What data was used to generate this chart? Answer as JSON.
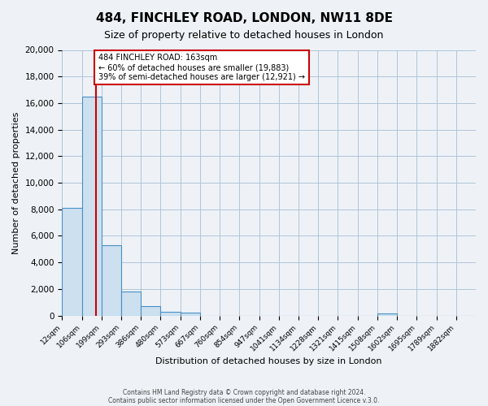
{
  "title": "484, FINCHLEY ROAD, LONDON, NW11 8DE",
  "subtitle": "Size of property relative to detached houses in London",
  "xlabel": "Distribution of detached houses by size in London",
  "ylabel": "Number of detached properties",
  "bin_labels": [
    "12sqm",
    "106sqm",
    "199sqm",
    "293sqm",
    "386sqm",
    "480sqm",
    "573sqm",
    "667sqm",
    "760sqm",
    "854sqm",
    "947sqm",
    "1041sqm",
    "1134sqm",
    "1228sqm",
    "1321sqm",
    "1415sqm",
    "1508sqm",
    "1602sqm",
    "1695sqm",
    "1789sqm",
    "1882sqm"
  ],
  "bar_heights": [
    8100,
    16500,
    5300,
    1800,
    700,
    280,
    200,
    0,
    0,
    0,
    0,
    0,
    0,
    0,
    0,
    0,
    150,
    0,
    0,
    0,
    0
  ],
  "bar_color": "#cce0f0",
  "bar_edgecolor": "#4a90c4",
  "annotation_text_line1": "484 FINCHLEY ROAD: 163sqm",
  "annotation_text_line2": "← 60% of detached houses are smaller (19,883)",
  "annotation_text_line3": "39% of semi-detached houses are larger (12,921) →",
  "vline_color": "#cc0000",
  "vline_x": 1.7,
  "ylim": [
    0,
    20000
  ],
  "yticks": [
    0,
    2000,
    4000,
    6000,
    8000,
    10000,
    12000,
    14000,
    16000,
    18000,
    20000
  ],
  "footer1": "Contains HM Land Registry data © Crown copyright and database right 2024.",
  "footer2": "Contains public sector information licensed under the Open Government Licence v.3.0.",
  "background_color": "#eef2f7",
  "plot_bg_color": "#eef2f7",
  "grid_color": "#b0c4d8",
  "annotation_box_color": "#ffffff"
}
